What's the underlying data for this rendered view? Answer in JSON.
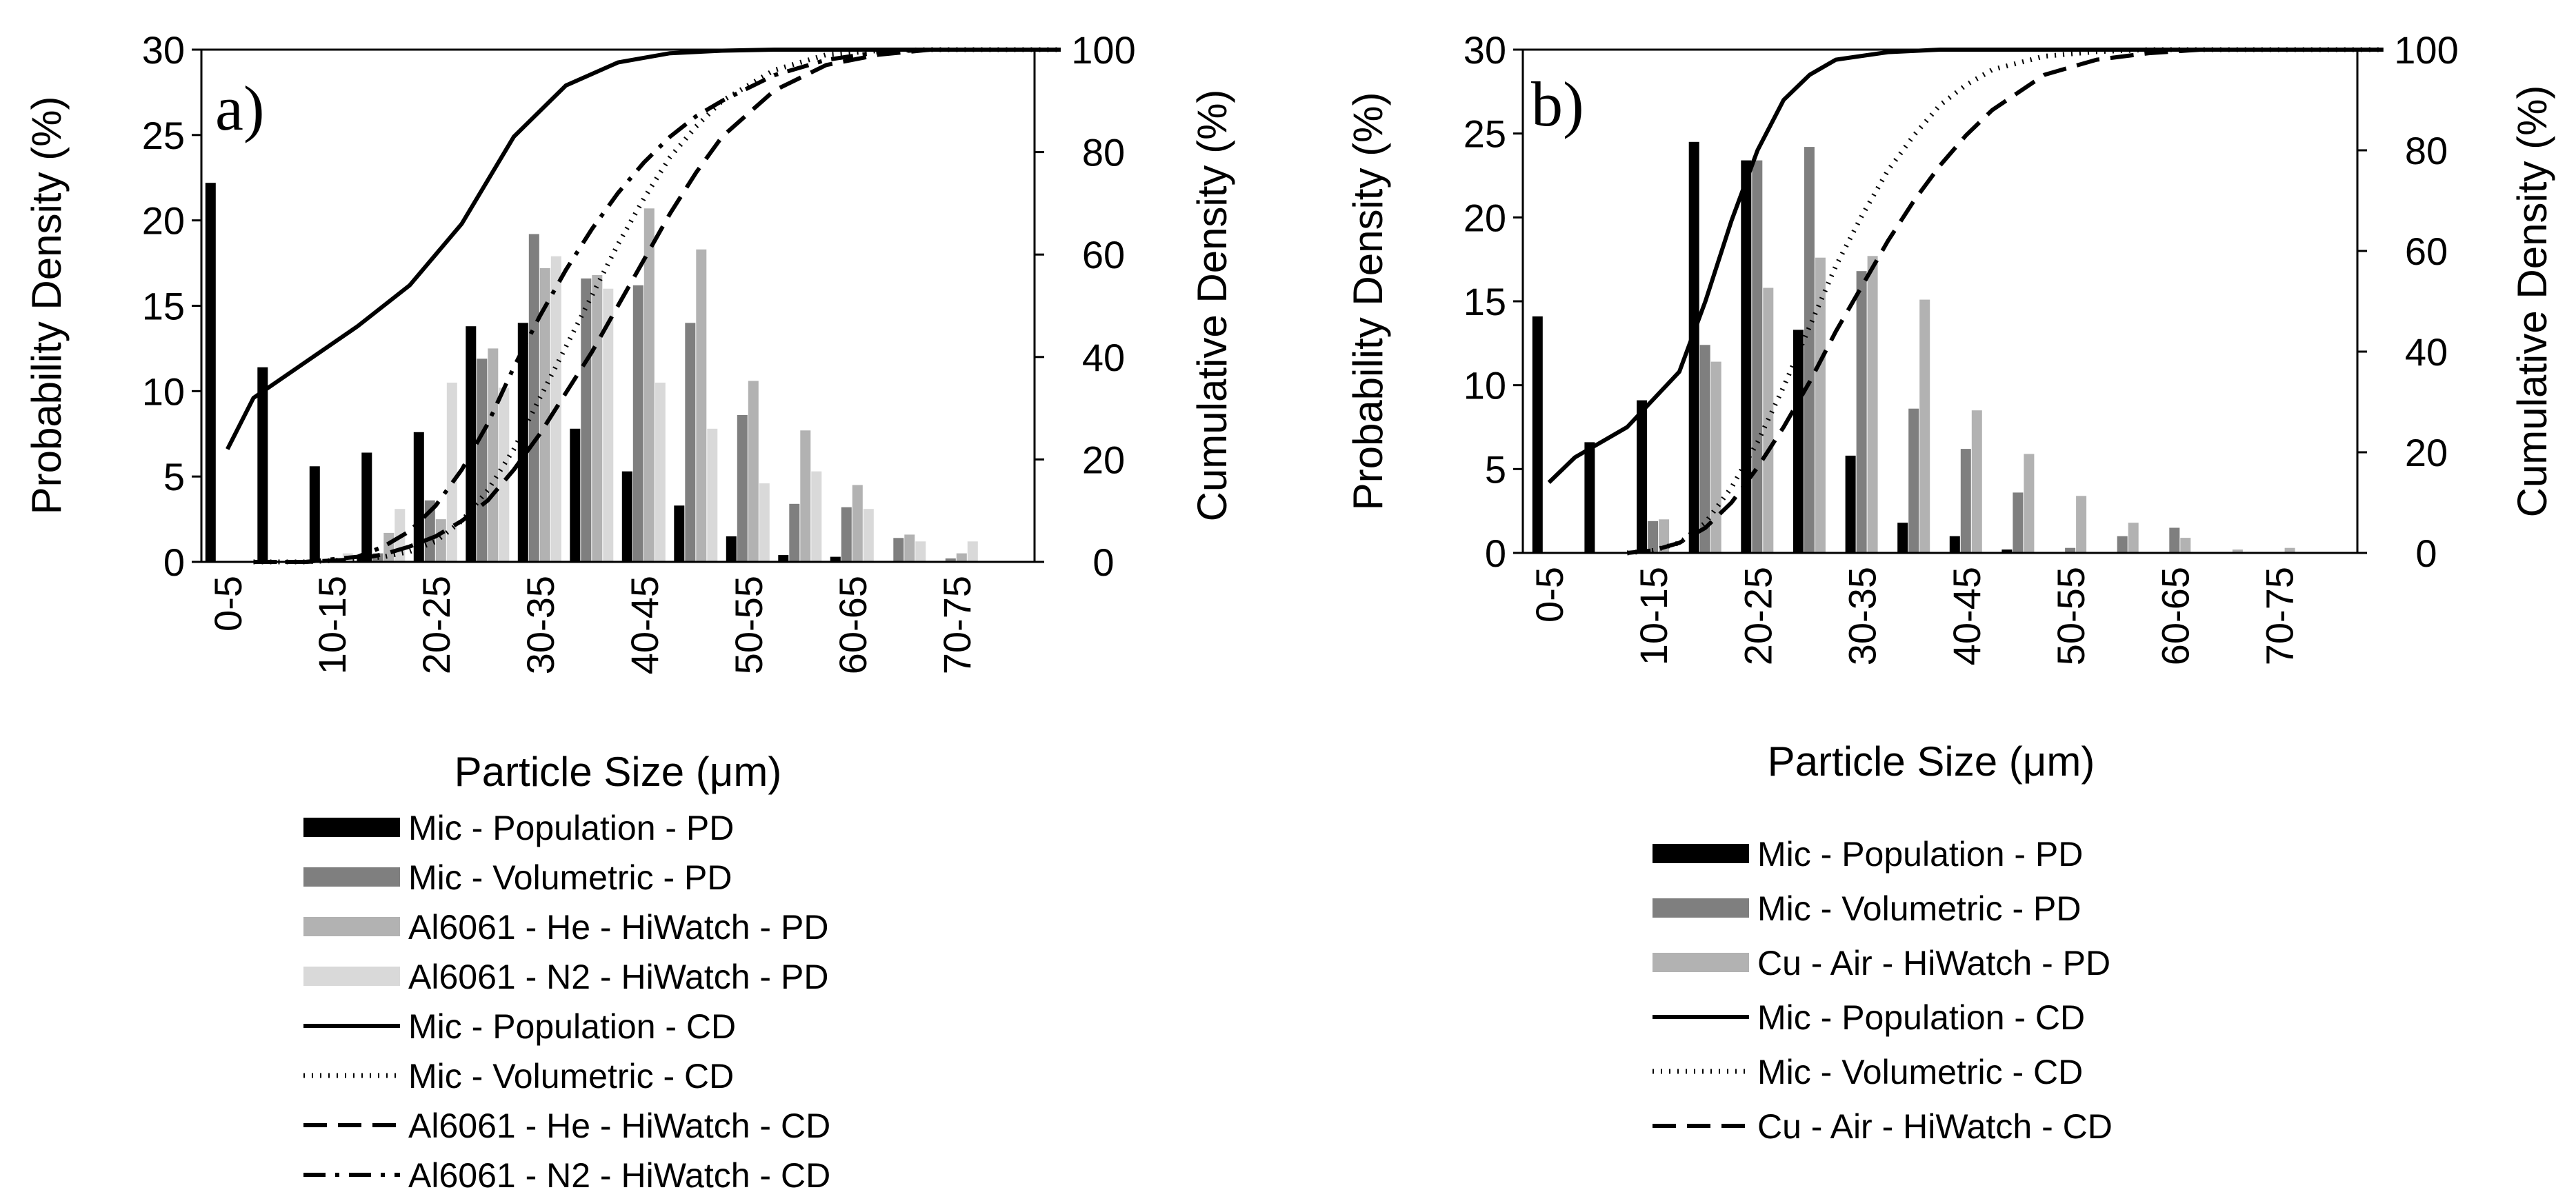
{
  "chart_data": [
    {
      "type": "bar",
      "panel_label": "a)",
      "xlabel": "Particle Size (μm)",
      "ylabel": "Probability Density (%)",
      "y2label": "Cumulative Density (%)",
      "ylim": [
        0,
        30
      ],
      "y2lim": [
        0,
        100
      ],
      "yticks": [
        "0",
        "5",
        "10",
        "15",
        "20",
        "25",
        "30"
      ],
      "y2ticks": [
        "0",
        "20",
        "40",
        "60",
        "80",
        "100"
      ],
      "categories": [
        "0-5",
        "5-10",
        "10-15",
        "15-20",
        "20-25",
        "25-30",
        "30-35",
        "35-40",
        "40-45",
        "45-50",
        "50-55",
        "55-60",
        "60-65",
        "65-70",
        "70-75",
        "75-80"
      ],
      "tick_labels": [
        "0-5",
        "10-15",
        "20-25",
        "30-35",
        "40-45",
        "50-55",
        "60-65",
        "70-75"
      ],
      "series": [
        {
          "name": "Mic - Population - PD",
          "kind": "bar",
          "color": "#000000",
          "values": [
            22.2,
            11.4,
            5.6,
            6.4,
            7.6,
            13.8,
            14.0,
            7.8,
            5.3,
            3.3,
            1.5,
            0.4,
            0.3,
            0,
            0,
            0
          ]
        },
        {
          "name": "Mic - Volumetric - PD",
          "kind": "bar",
          "color": "#7f7f7f",
          "values": [
            0,
            0,
            0.1,
            0.5,
            3.6,
            11.9,
            19.2,
            16.6,
            16.2,
            14.0,
            8.6,
            3.4,
            3.2,
            1.4,
            0.2,
            0
          ]
        },
        {
          "name": "Al6061 - He - HiWatch - PD",
          "kind": "bar",
          "color": "#b2b2b2",
          "values": [
            0,
            0,
            0.2,
            1.7,
            2.5,
            12.5,
            17.2,
            16.8,
            20.7,
            18.3,
            10.6,
            7.7,
            4.5,
            1.6,
            0.5,
            0
          ]
        },
        {
          "name": "Al6061 - N2 - HiWatch - PD",
          "kind": "bar",
          "color": "#d9d9d9",
          "values": [
            0,
            0,
            0.5,
            3.1,
            10.5,
            10.2,
            17.9,
            16.0,
            10.5,
            7.8,
            4.6,
            5.3,
            3.1,
            1.2,
            1.2,
            0
          ]
        },
        {
          "name": "Mic - Population - CD",
          "kind": "line",
          "dash": "solid",
          "x": [
            0.5,
            1,
            2,
            3,
            4,
            5,
            6,
            7,
            8,
            9,
            10,
            11,
            12,
            13,
            14,
            15,
            16,
            16.5
          ],
          "values": [
            22,
            32,
            39,
            46,
            54,
            66,
            83,
            93,
            97.5,
            99.3,
            99.8,
            100,
            100,
            100,
            100,
            100,
            100,
            100
          ]
        },
        {
          "name": "Mic - Volumetric - CD",
          "kind": "line",
          "dash": "dotted",
          "x": [
            1,
            2,
            3,
            3.5,
            4,
            4.5,
            5,
            5.5,
            6,
            6.5,
            7,
            7.5,
            8,
            8.5,
            9,
            9.5,
            10,
            11,
            12,
            13,
            14,
            15,
            16,
            16.5
          ],
          "values": [
            0,
            0,
            0.5,
            1,
            2,
            4,
            8,
            14,
            22,
            32,
            42,
            52,
            62,
            71,
            79,
            85,
            90,
            96,
            99,
            99.8,
            100,
            100,
            100,
            100
          ]
        },
        {
          "name": "Al6061 - He - HiWatch - CD",
          "kind": "line",
          "dash": "dashed",
          "x": [
            1,
            2,
            3,
            3.5,
            4,
            4.5,
            5,
            5.5,
            6,
            6.5,
            7,
            7.5,
            8,
            8.5,
            9,
            9.5,
            10,
            11,
            12,
            13,
            14,
            15,
            16,
            16.5
          ],
          "values": [
            0,
            0,
            0.5,
            1.5,
            3,
            5,
            8,
            12,
            18,
            25,
            33,
            41,
            50,
            59,
            68,
            76,
            83,
            92,
            97,
            99,
            100,
            100,
            100,
            100
          ]
        },
        {
          "name": "Al6061 - N2 - HiWatch - CD",
          "kind": "line",
          "dash": "dashdot",
          "x": [
            1,
            2,
            3,
            3.5,
            4,
            4.5,
            5,
            5.5,
            6,
            6.5,
            7,
            7.5,
            8,
            8.5,
            9,
            9.5,
            10,
            11,
            12,
            13,
            14,
            15,
            16,
            16.5
          ],
          "values": [
            0,
            0,
            1,
            3,
            6,
            11,
            18,
            27,
            38,
            48,
            57,
            65,
            72,
            78,
            83,
            87,
            90,
            95,
            98,
            99.5,
            100,
            100,
            100,
            100
          ]
        }
      ]
    },
    {
      "type": "bar",
      "panel_label": "b)",
      "xlabel": "Particle Size (μm)",
      "ylabel": "Probability Density (%)",
      "y2label": "Cumulative Density (%)",
      "ylim": [
        0,
        30
      ],
      "y2lim": [
        0,
        100
      ],
      "yticks": [
        "0",
        "5",
        "10",
        "15",
        "20",
        "25",
        "30"
      ],
      "y2ticks": [
        "0",
        "20",
        "40",
        "60",
        "80",
        "100"
      ],
      "categories": [
        "0-5",
        "5-10",
        "10-15",
        "15-20",
        "20-25",
        "25-30",
        "30-35",
        "35-40",
        "40-45",
        "45-50",
        "50-55",
        "55-60",
        "60-65",
        "65-70",
        "70-75",
        "75-80"
      ],
      "tick_labels": [
        "0-5",
        "10-15",
        "20-25",
        "30-35",
        "40-45",
        "50-55",
        "60-65",
        "70-75"
      ],
      "series": [
        {
          "name": "Mic - Population - PD",
          "kind": "bar",
          "color": "#000000",
          "values": [
            14.1,
            6.6,
            9.1,
            24.5,
            23.4,
            13.3,
            5.8,
            1.8,
            1.0,
            0.2,
            0,
            0,
            0,
            0,
            0,
            0
          ]
        },
        {
          "name": "Mic - Volumetric - PD",
          "kind": "bar",
          "color": "#7f7f7f",
          "values": [
            0,
            0,
            1.9,
            12.4,
            23.4,
            24.2,
            16.8,
            8.6,
            6.2,
            3.6,
            0.3,
            1.0,
            1.5,
            0,
            0,
            0
          ]
        },
        {
          "name": "Cu - Air - HiWatch - PD",
          "kind": "bar",
          "color": "#b2b2b2",
          "values": [
            0,
            0,
            2.0,
            11.4,
            15.8,
            17.6,
            17.7,
            15.1,
            8.5,
            5.9,
            3.4,
            1.8,
            0.9,
            0.2,
            0.3,
            0
          ]
        },
        {
          "name": "Mic - Population - CD",
          "kind": "line",
          "dash": "solid",
          "x": [
            0.5,
            1,
            2,
            3,
            3.5,
            4,
            4.5,
            5,
            5.5,
            6,
            7,
            8,
            9,
            10,
            11,
            12,
            13,
            14,
            15,
            16,
            16.5
          ],
          "values": [
            14,
            19,
            25,
            36,
            50,
            66,
            80,
            90,
            95,
            98,
            99.5,
            100,
            100,
            100,
            100,
            100,
            100,
            100,
            100,
            100,
            100
          ]
        },
        {
          "name": "Mic - Volumetric - CD",
          "kind": "line",
          "dash": "dotted",
          "x": [
            2,
            2.5,
            3,
            3.5,
            4,
            4.5,
            5,
            5.5,
            6,
            6.5,
            7,
            7.5,
            8,
            8.5,
            9,
            10,
            11,
            12,
            13,
            14,
            15,
            16,
            16.5
          ],
          "values": [
            0,
            0.5,
            2,
            6,
            13,
            22,
            33,
            45,
            57,
            67,
            76,
            83,
            89,
            93,
            96,
            98.7,
            99.6,
            100,
            100,
            100,
            100,
            100,
            100
          ]
        },
        {
          "name": "Cu - Air - HiWatch - CD",
          "kind": "line",
          "dash": "dashed",
          "x": [
            2,
            2.5,
            3,
            3.5,
            4,
            4.5,
            5,
            5.5,
            6,
            6.5,
            7,
            7.5,
            8,
            8.5,
            9,
            10,
            11,
            12,
            13,
            14,
            15,
            16,
            16.5
          ],
          "values": [
            0,
            0.5,
            2,
            5,
            10,
            17,
            25,
            34,
            44,
            53,
            62,
            70,
            77,
            83,
            88,
            95,
            98,
            99.3,
            100,
            100,
            100,
            100,
            100
          ]
        }
      ]
    }
  ]
}
